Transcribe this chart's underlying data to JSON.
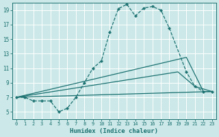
{
  "xlabel": "Humidex (Indice chaleur)",
  "bg_color": "#cce8e8",
  "grid_color": "#ffffff",
  "line_color": "#1a7070",
  "xlim": [
    -0.5,
    23.5
  ],
  "ylim": [
    4,
    20
  ],
  "xticks": [
    0,
    1,
    2,
    3,
    4,
    5,
    6,
    7,
    8,
    9,
    10,
    11,
    12,
    13,
    14,
    15,
    16,
    17,
    18,
    19,
    20,
    21,
    22,
    23
  ],
  "yticks": [
    5,
    7,
    9,
    11,
    13,
    15,
    17,
    19
  ],
  "series": [
    {
      "x": [
        0,
        1,
        2,
        3,
        4,
        5,
        6,
        7,
        8,
        9,
        10,
        11,
        12,
        13,
        14,
        15,
        16,
        17,
        18,
        20,
        21,
        22,
        23
      ],
      "y": [
        7,
        7,
        6.5,
        6.5,
        6.5,
        5.0,
        5.5,
        7.0,
        9.0,
        11.0,
        12.0,
        16.0,
        19.2,
        19.8,
        18.2,
        19.3,
        19.5,
        19.0,
        16.5,
        10.5,
        8.5,
        7.8,
        7.8
      ],
      "style": "--",
      "marker": "P",
      "markersize": 2.5,
      "linewidth": 0.9
    },
    {
      "x": [
        0,
        20,
        22,
        23
      ],
      "y": [
        7,
        12.5,
        7.8,
        7.8
      ],
      "style": "-",
      "marker": null,
      "linewidth": 0.9
    },
    {
      "x": [
        0,
        19,
        21,
        23
      ],
      "y": [
        7,
        10.5,
        8.5,
        7.8
      ],
      "style": "-",
      "marker": null,
      "linewidth": 0.9
    },
    {
      "x": [
        0,
        23
      ],
      "y": [
        7,
        7.8
      ],
      "style": "-",
      "marker": null,
      "linewidth": 0.9
    }
  ]
}
